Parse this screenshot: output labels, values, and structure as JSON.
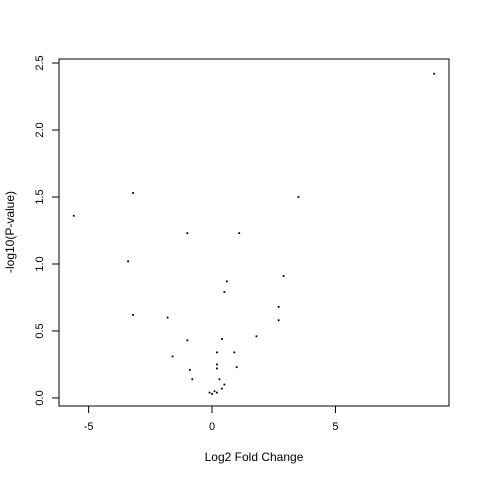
{
  "chart_data": {
    "type": "scatter",
    "xlabel": "Log2 Fold Change",
    "ylabel": "-log10(P-value)",
    "xlim": [
      -6.2,
      9.6
    ],
    "ylim": [
      -0.06,
      2.53
    ],
    "x_ticks": [
      -5,
      0,
      5
    ],
    "y_ticks": [
      0.0,
      0.5,
      1.0,
      1.5,
      2.0,
      2.5
    ],
    "x_tick_labels": [
      "-5",
      "0",
      "5"
    ],
    "y_tick_labels": [
      "0.0",
      "0.5",
      "1.0",
      "1.5",
      "2.0",
      "2.5"
    ],
    "grid": false,
    "points": [
      {
        "x": 9.0,
        "y": 2.42
      },
      {
        "x": -3.2,
        "y": 1.53
      },
      {
        "x": 3.5,
        "y": 1.5
      },
      {
        "x": -5.6,
        "y": 1.36
      },
      {
        "x": -1.0,
        "y": 1.23
      },
      {
        "x": 1.1,
        "y": 1.23
      },
      {
        "x": -3.4,
        "y": 1.02
      },
      {
        "x": 2.9,
        "y": 0.91
      },
      {
        "x": 0.6,
        "y": 0.87
      },
      {
        "x": 0.5,
        "y": 0.79
      },
      {
        "x": 2.7,
        "y": 0.68
      },
      {
        "x": -3.2,
        "y": 0.62
      },
      {
        "x": -1.8,
        "y": 0.6
      },
      {
        "x": 2.7,
        "y": 0.58
      },
      {
        "x": 1.8,
        "y": 0.46
      },
      {
        "x": 0.4,
        "y": 0.44
      },
      {
        "x": -1.0,
        "y": 0.43
      },
      {
        "x": 0.9,
        "y": 0.34
      },
      {
        "x": 0.2,
        "y": 0.34
      },
      {
        "x": -1.6,
        "y": 0.31
      },
      {
        "x": 0.2,
        "y": 0.25
      },
      {
        "x": 1.0,
        "y": 0.23
      },
      {
        "x": 0.2,
        "y": 0.22
      },
      {
        "x": -0.9,
        "y": 0.21
      },
      {
        "x": -0.8,
        "y": 0.14
      },
      {
        "x": 0.3,
        "y": 0.14
      },
      {
        "x": 0.5,
        "y": 0.1
      },
      {
        "x": 0.4,
        "y": 0.07
      },
      {
        "x": 0.1,
        "y": 0.05
      },
      {
        "x": -0.1,
        "y": 0.04
      },
      {
        "x": 0.2,
        "y": 0.04
      },
      {
        "x": 0.0,
        "y": 0.03
      }
    ]
  }
}
